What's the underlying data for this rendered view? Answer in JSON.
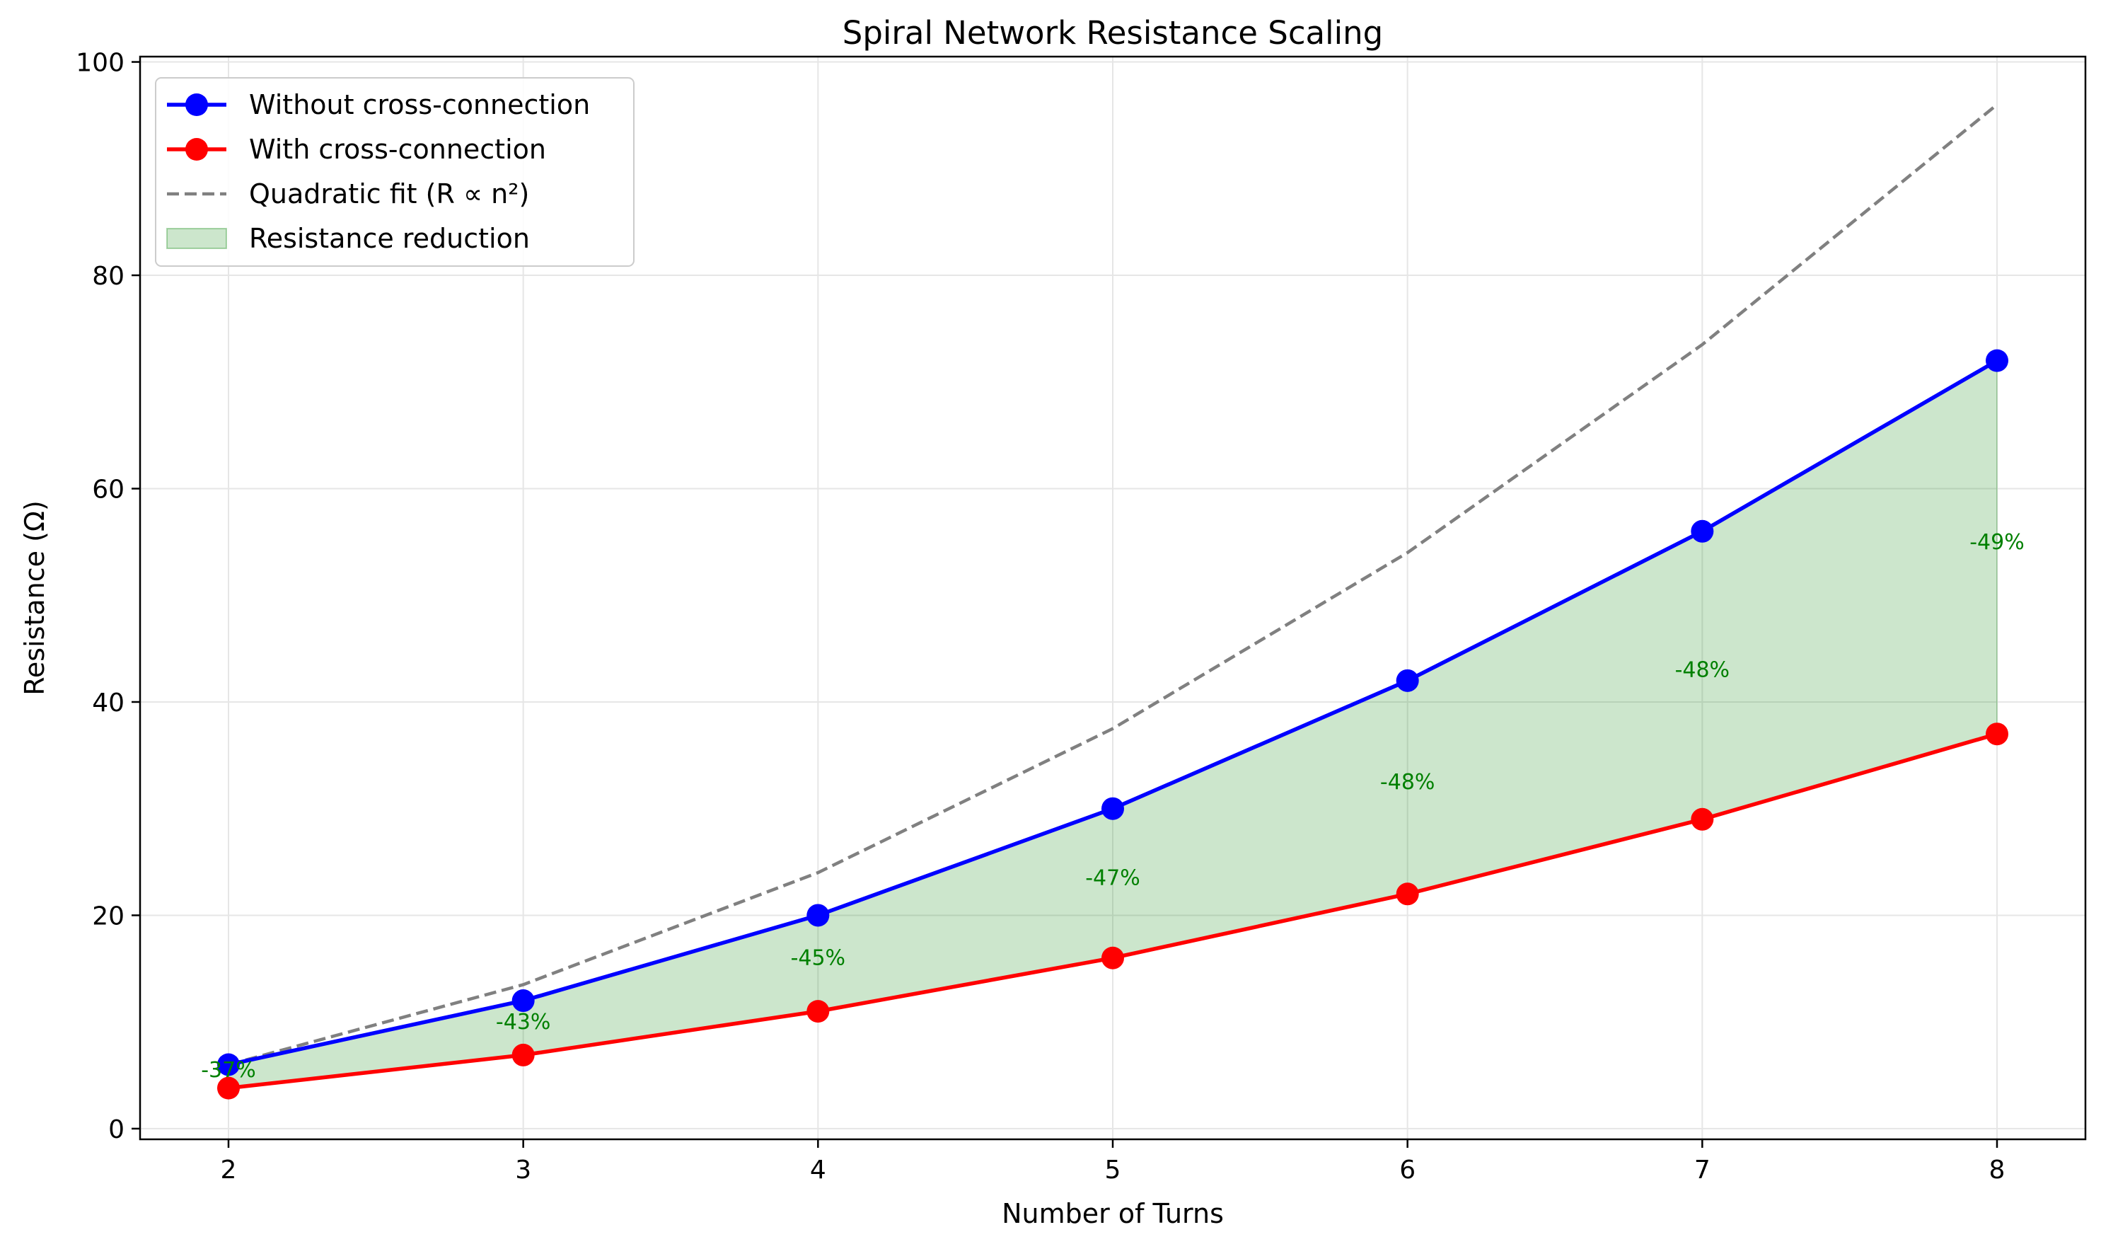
{
  "chart_data": {
    "type": "line",
    "title": "Spiral Network Resistance Scaling",
    "xlabel": "Number of Turns",
    "ylabel": "Resistance (Ω)",
    "x": [
      2,
      3,
      4,
      5,
      6,
      7,
      8
    ],
    "xlim": [
      1.7,
      8.3
    ],
    "ylim": [
      -1,
      100.5
    ],
    "xticks": [
      2,
      3,
      4,
      5,
      6,
      7,
      8
    ],
    "yticks": [
      0,
      20,
      40,
      60,
      80,
      100
    ],
    "grid": true,
    "legend_position": "upper-left",
    "series": [
      {
        "name": "Without cross-connection",
        "kind": "line-marker",
        "color": "#0000ff",
        "values": [
          6,
          12,
          20,
          30,
          42,
          56,
          72
        ]
      },
      {
        "name": "With cross-connection",
        "kind": "line-marker",
        "color": "#ff0000",
        "values": [
          3.8,
          6.9,
          11,
          16,
          22,
          29,
          37
        ]
      },
      {
        "name": "Quadratic fit (R ∝ n²)",
        "kind": "dashed",
        "color": "#808080",
        "values": [
          6,
          13.5,
          24,
          37.5,
          54,
          73.5,
          96
        ]
      }
    ],
    "fill": {
      "name": "Resistance reduction",
      "color": "#008000",
      "between": [
        "Without cross-connection",
        "With cross-connection"
      ]
    },
    "annotations": [
      {
        "x": 2,
        "y": 5.5,
        "text": "-37%"
      },
      {
        "x": 3,
        "y": 10,
        "text": "-43%"
      },
      {
        "x": 4,
        "y": 16,
        "text": "-45%"
      },
      {
        "x": 5,
        "y": 23.5,
        "text": "-47%"
      },
      {
        "x": 6,
        "y": 32.5,
        "text": "-48%"
      },
      {
        "x": 7,
        "y": 43,
        "text": "-48%"
      },
      {
        "x": 8,
        "y": 55,
        "text": "-49%"
      }
    ],
    "annotation_color": "#008000"
  }
}
